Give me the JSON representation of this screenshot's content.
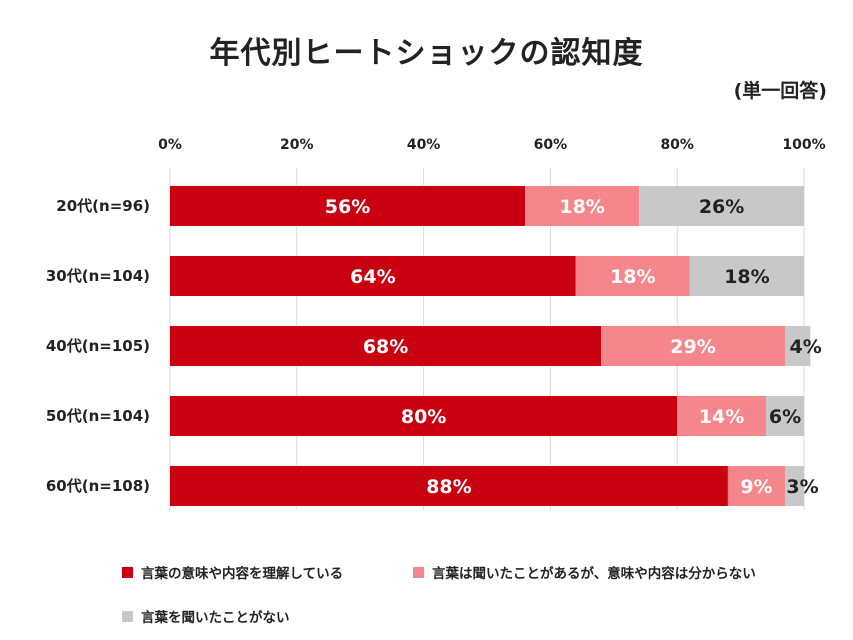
{
  "chart_data": {
    "type": "bar",
    "orientation": "horizontal",
    "stacked": true,
    "title": "年代別ヒートショックの認知度",
    "subtitle": "(単一回答)",
    "categories": [
      "20代(n=96)",
      "30代(n=104)",
      "40代(n=105)",
      "50代(n=104)",
      "60代(n=108)"
    ],
    "series": [
      {
        "name": "言葉の意味や内容を理解している",
        "color": "#c8000f",
        "values": [
          56,
          64,
          68,
          80,
          88
        ]
      },
      {
        "name": "言葉は聞いたことがあるが、意味や内容は分からない",
        "color": "#f5878c",
        "values": [
          18,
          18,
          29,
          14,
          9
        ]
      },
      {
        "name": "言葉を聞いたことがない",
        "color": "#c8c8c8",
        "values": [
          26,
          18,
          4,
          6,
          3
        ]
      }
    ],
    "data_labels": [
      [
        "56%",
        "18%",
        "26%"
      ],
      [
        "64%",
        "18%",
        "18%"
      ],
      [
        "68%",
        "29%",
        "4%"
      ],
      [
        "80%",
        "14%",
        "6%"
      ],
      [
        "88%",
        "9%",
        "3%"
      ]
    ],
    "xlim": [
      0,
      100
    ],
    "x_ticks": [
      "0%",
      "20%",
      "40%",
      "60%",
      "80%",
      "100%"
    ],
    "x_tick_values": [
      0,
      20,
      40,
      60,
      80,
      100
    ],
    "grid": true,
    "legend_position": "bottom"
  }
}
